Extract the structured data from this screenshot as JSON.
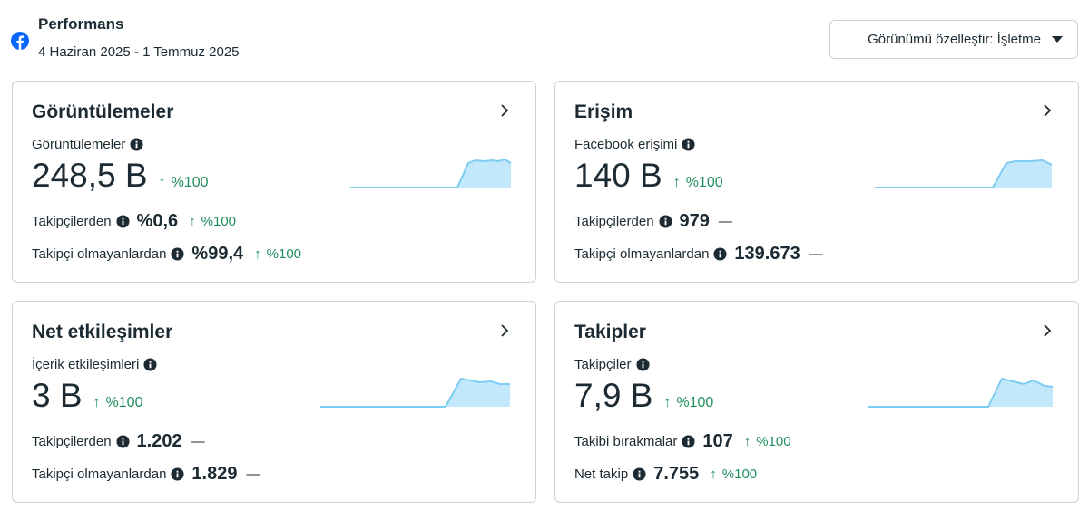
{
  "header": {
    "title": "Performans",
    "date_range": "4 Haziran 2025 - 1 Temmuz 2025",
    "view_button_label": "Görünümü özelleştir: İşletme"
  },
  "colors": {
    "accent_green": "#1e8e5e",
    "spark_fill": "#c4e8fb",
    "spark_line": "#7dccf2",
    "facebook_blue": "#0866ff"
  },
  "cards": {
    "views": {
      "title": "Görüntülemeler",
      "metric_label": "Görüntülemeler",
      "metric_value": "248,5 B",
      "metric_delta": "%100",
      "rows": [
        {
          "label": "Takipçilerden",
          "value": "%0,6",
          "delta": "%100"
        },
        {
          "label": "Takipçi olmayanlardan",
          "value": "%99,4",
          "delta": "%100"
        }
      ]
    },
    "reach": {
      "title": "Erişim",
      "metric_label": "Facebook erişimi",
      "metric_value": "140 B",
      "metric_delta": "%100",
      "rows": [
        {
          "label": "Takipçilerden",
          "value": "979",
          "delta": "—"
        },
        {
          "label": "Takipçi olmayanlardan",
          "value": "139.673",
          "delta": "—"
        }
      ]
    },
    "engagement": {
      "title": "Net etkileşimler",
      "metric_label": "İçerik etkileşimleri",
      "metric_value": "3 B",
      "metric_delta": "%100",
      "rows": [
        {
          "label": "Takipçilerden",
          "value": "1.202",
          "delta": "—"
        },
        {
          "label": "Takipçi olmayanlardan",
          "value": "1.829",
          "delta": "—"
        }
      ]
    },
    "follows": {
      "title": "Takipler",
      "metric_label": "Takipçiler",
      "metric_value": "7,9 B",
      "metric_delta": "%100",
      "rows": [
        {
          "label": "Takibi bırakmalar",
          "value": "107",
          "delta": "%100"
        },
        {
          "label": "Net takip",
          "value": "7.755",
          "delta": "%100"
        }
      ]
    }
  }
}
